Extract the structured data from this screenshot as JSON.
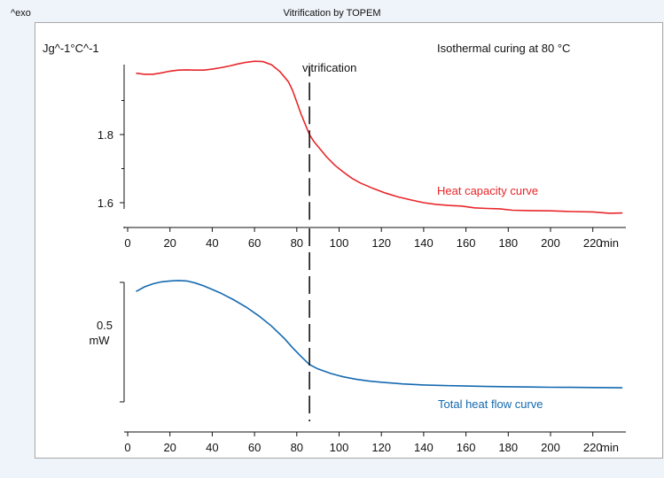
{
  "header": {
    "exo_label": "^exo",
    "title": "Vitrification by TOPEM"
  },
  "chart_data": [
    {
      "type": "line",
      "title": "Isothermal curing at 80 °C",
      "ylabel": "Jg^-1°C^-1",
      "xlabel": "min",
      "xlim": [
        0,
        236
      ],
      "ylim": [
        1.55,
        2.07
      ],
      "x_ticks": [
        "0",
        "20",
        "40",
        "60",
        "80",
        "100",
        "120",
        "140",
        "160",
        "180",
        "200",
        "220"
      ],
      "y_ticks": [
        "1.6",
        "1.8"
      ],
      "y_tick_values": [
        1.6,
        1.8
      ],
      "grid": false,
      "series": [
        {
          "name": "Heat capacity curve",
          "color": "#e8262a",
          "x": [
            4,
            8,
            12,
            16,
            20,
            24,
            28,
            32,
            36,
            40,
            44,
            48,
            52,
            56,
            60,
            64,
            68,
            72,
            76,
            78,
            80,
            82,
            84,
            86,
            88,
            90,
            94,
            98,
            102,
            106,
            110,
            116,
            122,
            128,
            134,
            140,
            146,
            152,
            158,
            164,
            170,
            176,
            182,
            190,
            200,
            210,
            220,
            228,
            234
          ],
          "y": [
            1.98,
            1.977,
            1.977,
            1.981,
            1.986,
            1.989,
            1.99,
            1.989,
            1.989,
            1.992,
            1.996,
            2.001,
            2.007,
            2.012,
            2.015,
            2.014,
            2.005,
            1.985,
            1.955,
            1.93,
            1.895,
            1.86,
            1.83,
            1.8,
            1.78,
            1.765,
            1.735,
            1.71,
            1.69,
            1.672,
            1.658,
            1.642,
            1.628,
            1.617,
            1.608,
            1.6,
            1.595,
            1.592,
            1.59,
            1.585,
            1.583,
            1.582,
            1.578,
            1.577,
            1.576,
            1.574,
            1.573,
            1.569,
            1.57
          ]
        },
        {
          "name": "vitrification",
          "color": "#111111",
          "x": [
            86,
            86
          ],
          "y": [
            1.55,
            2.0
          ]
        }
      ]
    },
    {
      "type": "line",
      "xlabel": "min",
      "ylabel": "0.5\nmW",
      "ylabel_lines": [
        "0.5",
        "mW"
      ],
      "xlim": [
        0,
        236
      ],
      "ylim": [
        0,
        1
      ],
      "x_ticks": [
        "0",
        "20",
        "40",
        "60",
        "80",
        "100",
        "120",
        "140",
        "160",
        "180",
        "200",
        "220"
      ],
      "grid": false,
      "series": [
        {
          "name": "Total heat flow curve",
          "color": "#1469b0",
          "x": [
            4,
            8,
            12,
            16,
            20,
            24,
            28,
            32,
            36,
            40,
            44,
            50,
            56,
            62,
            68,
            74,
            78,
            82,
            86,
            90,
            96,
            102,
            108,
            114,
            120,
            130,
            140,
            150,
            160,
            170,
            180,
            190,
            200,
            210,
            220,
            228,
            234
          ],
          "y": [
            0.815,
            0.85,
            0.872,
            0.886,
            0.893,
            0.896,
            0.893,
            0.878,
            0.856,
            0.83,
            0.803,
            0.755,
            0.7,
            0.635,
            0.56,
            0.47,
            0.4,
            0.335,
            0.275,
            0.243,
            0.21,
            0.185,
            0.167,
            0.154,
            0.145,
            0.133,
            0.125,
            0.12,
            0.117,
            0.114,
            0.112,
            0.11,
            0.108,
            0.107,
            0.106,
            0.105,
            0.104
          ]
        },
        {
          "name": "vitrification",
          "color": "#111111",
          "x": [
            86,
            86
          ],
          "y": [
            0,
            1.05
          ]
        }
      ]
    }
  ],
  "annotations": {
    "vitrification_label": "vitrification",
    "heat_capacity_label": "Heat capacity curve",
    "total_heat_flow_label": "Total heat flow curve"
  }
}
